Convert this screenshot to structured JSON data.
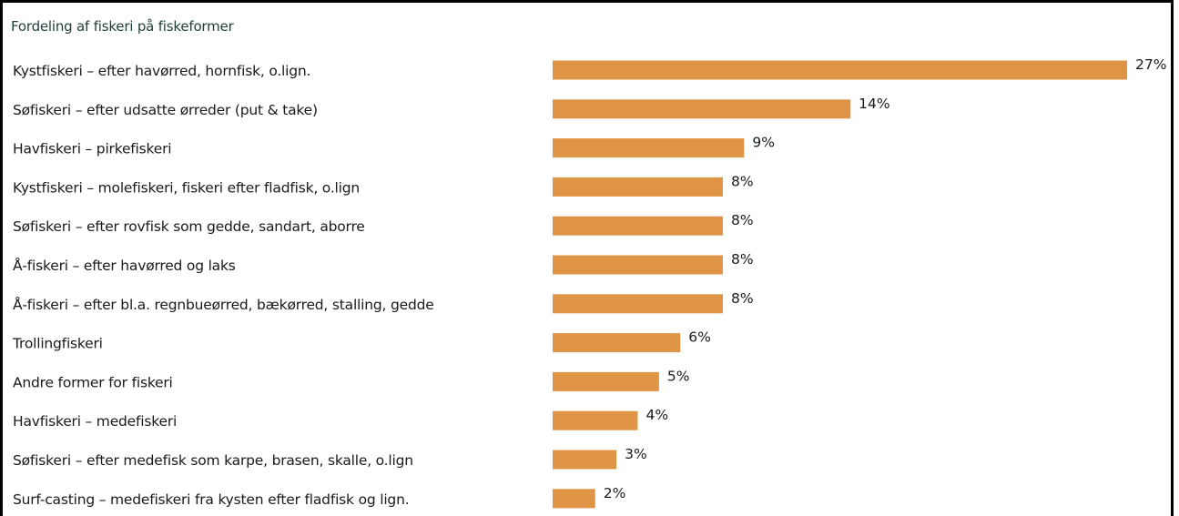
{
  "chart_data": {
    "type": "bar",
    "orientation": "horizontal",
    "title": "Fordeling af fiskeri på fiskeformer",
    "categories": [
      "Kystfiskeri – efter havørred, hornfisk, o.lign.",
      "Søfiskeri – efter udsatte ørreder (put & take)",
      "Havfiskeri – pirkefiskeri",
      "Kystfiskeri – molefiskeri, fiskeri efter fladfisk, o.lign",
      "Søfiskeri – efter rovfisk som gedde, sandart, aborre",
      "Å-fiskeri – efter havørred og laks",
      "Å-fiskeri – efter bl.a.  regnbueørred, bækørred, stalling, gedde",
      "Trollingfiskeri",
      "Andre former for fiskeri",
      "Havfiskeri – medefiskeri",
      "Søfiskeri – efter medefisk som karpe, brasen, skalle, o.lign",
      "Surf-casting – medefiskeri fra kysten efter fladfisk og lign."
    ],
    "values": [
      27,
      14,
      9,
      8,
      8,
      8,
      8,
      6,
      5,
      4,
      3,
      2
    ],
    "value_labels": [
      "27%",
      "14%",
      "9%",
      "8%",
      "8%",
      "8%",
      "8%",
      "6%",
      "5%",
      "4%",
      "3%",
      "2%"
    ],
    "unit": "%",
    "xlim": [
      0,
      27
    ],
    "grid": false,
    "legend": "none"
  },
  "colors": {
    "bar": "#E09445",
    "title": "#1f3f38",
    "label": "#1a1a1a",
    "frame": "#000000"
  }
}
